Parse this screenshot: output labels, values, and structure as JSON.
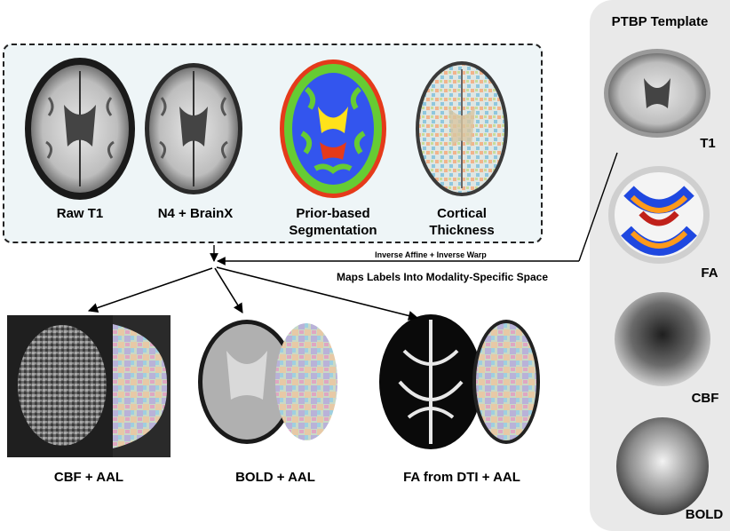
{
  "pipeline": {
    "steps": [
      {
        "label": "Raw T1"
      },
      {
        "label": "N4 + BrainX"
      },
      {
        "label_line1": "Prior-based",
        "label_line2": "Segmentation"
      },
      {
        "label_line1": "Cortical",
        "label_line2": "Thickness"
      }
    ]
  },
  "arrows": {
    "inverse_warp": "Inverse Affine + Inverse Warp",
    "maps_labels": "Maps Labels Into Modality-Specific Space"
  },
  "outputs": [
    {
      "label": "CBF + AAL"
    },
    {
      "label": "BOLD + AAL"
    },
    {
      "label": "FA from DTI + AAL"
    }
  ],
  "template": {
    "title": "PTBP Template",
    "images": [
      {
        "label": "T1"
      },
      {
        "label": "FA"
      },
      {
        "label": "CBF"
      },
      {
        "label": "BOLD"
      }
    ]
  },
  "colors": {
    "segmentation_csf": "#3355ee",
    "segmentation_gm": "#66cc33",
    "segmentation_wm": "#1f48e0",
    "segmentation_outline": "#e53a1a",
    "segmentation_deep": "#ffe21a",
    "panel_bg": "#e9e9e9",
    "box_bg": "#eef5f7"
  }
}
